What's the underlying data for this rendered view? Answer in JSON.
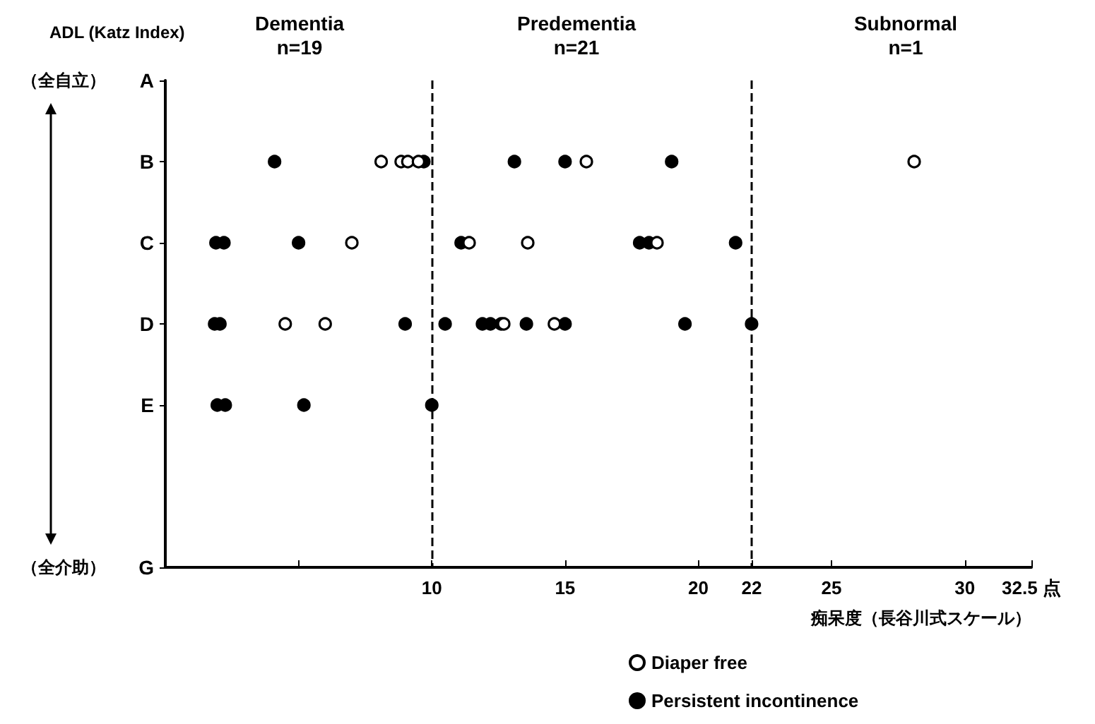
{
  "chart_data": {
    "type": "scatter",
    "orientation": "horizontal",
    "ylabel": "ADL (Katz Index)",
    "xlabel": "痴呆度（長谷川式スケール）",
    "categories": [
      "A",
      "B",
      "C",
      "D",
      "E",
      null,
      "G"
    ],
    "xlim": [
      0,
      32.5
    ],
    "xticks": [
      {
        "value": 5,
        "label": null
      },
      10,
      15,
      20,
      22,
      25,
      30,
      {
        "value": 32.5,
        "label": "32.5 点"
      }
    ],
    "series": [
      {
        "name": "Diaper free",
        "color": "#ffffff",
        "x": [
          "B",
          "B",
          "B",
          "B",
          "B",
          "C",
          "C",
          "C",
          "C",
          "D",
          "D",
          "D",
          "D",
          "B"
        ],
        "values": [
          8.1,
          8.85,
          9.1,
          9.5,
          15.8,
          7.0,
          11.4,
          13.6,
          18.45,
          4.5,
          6.0,
          12.7,
          14.6,
          28.1
        ]
      },
      {
        "name": "Persistent incontinence",
        "color": "#000000",
        "x": [
          "B",
          "B",
          "B",
          "B",
          "B",
          "C",
          "C",
          "C",
          "C",
          "C",
          "C",
          "C",
          "D",
          "D",
          "D",
          "D",
          "D",
          "D",
          "D",
          "D",
          "D",
          "D",
          "D",
          "E",
          "E",
          "E",
          "E"
        ],
        "values": [
          4.1,
          9.7,
          13.1,
          15.0,
          19.0,
          1.9,
          2.2,
          5.0,
          11.1,
          17.8,
          18.15,
          21.4,
          1.85,
          2.05,
          9.0,
          10.5,
          11.9,
          12.2,
          12.6,
          13.55,
          15.0,
          19.5,
          22,
          1.95,
          2.25,
          5.2,
          10.0
        ]
      }
    ],
    "marker": "circle",
    "grid": false,
    "legend": "bottom",
    "ref_lines": [
      {
        "axis": "x",
        "value": 10,
        "line_style": "dashed",
        "color": "#000000"
      },
      {
        "axis": "x",
        "value": 22,
        "line_style": "dashed",
        "color": "#000000"
      }
    ],
    "annotations": [
      "Dementia\nn=19",
      "Predementia\nn=21",
      "Subnormal\nn=1",
      "（全自立）",
      "（全介助）"
    ]
  }
}
